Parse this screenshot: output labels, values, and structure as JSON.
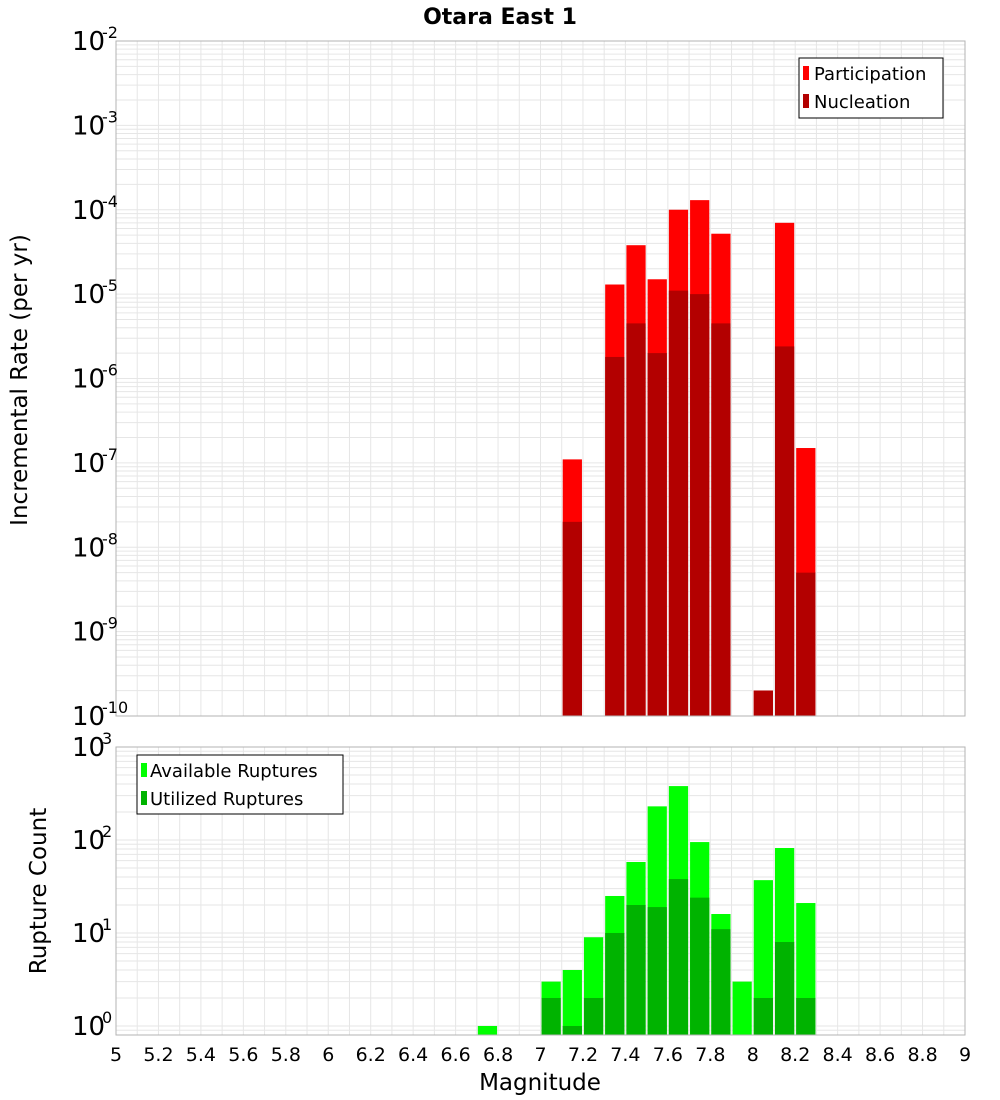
{
  "title": "Otara East 1",
  "chart_data": [
    {
      "type": "bar",
      "name": "rate-panel",
      "title": "Otara East 1",
      "xlabel": "Magnitude",
      "ylabel": "Incremental Rate (per yr)",
      "xlim": [
        5,
        9
      ],
      "ylim": [
        1e-10,
        0.01
      ],
      "y_scale": "log",
      "bar_width": 0.1,
      "grid": true,
      "legend_position": "top-right",
      "series": [
        {
          "name": "Participation",
          "color": "#ff0000",
          "points": [
            [
              7.15,
              1.1e-07
            ],
            [
              7.35,
              1.3e-05
            ],
            [
              7.45,
              3.8e-05
            ],
            [
              7.55,
              1.5e-05
            ],
            [
              7.65,
              0.0001
            ],
            [
              7.75,
              0.00013
            ],
            [
              7.85,
              5.2e-05
            ],
            [
              8.05,
              2e-10
            ],
            [
              8.15,
              7e-05
            ],
            [
              8.25,
              1.5e-07
            ]
          ]
        },
        {
          "name": "Nucleation",
          "color": "#b30000",
          "points": [
            [
              7.15,
              2e-08
            ],
            [
              7.35,
              1.8e-06
            ],
            [
              7.45,
              4.5e-06
            ],
            [
              7.55,
              2e-06
            ],
            [
              7.65,
              1.1e-05
            ],
            [
              7.75,
              1e-05
            ],
            [
              7.85,
              4.5e-06
            ],
            [
              8.05,
              2e-10
            ],
            [
              8.15,
              2.4e-06
            ],
            [
              8.25,
              5e-09
            ]
          ]
        }
      ]
    },
    {
      "type": "bar",
      "name": "count-panel",
      "xlabel": "Magnitude",
      "ylabel": "Rupture Count",
      "xlim": [
        5,
        9
      ],
      "ylim": [
        0.8,
        1000
      ],
      "y_scale": "log",
      "bar_width": 0.1,
      "grid": true,
      "legend_position": "top-left",
      "series": [
        {
          "name": "Available Ruptures",
          "color": "#00ff00",
          "points": [
            [
              6.75,
              1
            ],
            [
              7.05,
              3
            ],
            [
              7.15,
              4
            ],
            [
              7.25,
              9
            ],
            [
              7.35,
              25
            ],
            [
              7.45,
              58
            ],
            [
              7.55,
              230
            ],
            [
              7.65,
              380
            ],
            [
              7.75,
              95
            ],
            [
              7.85,
              16
            ],
            [
              7.95,
              3
            ],
            [
              8.05,
              37
            ],
            [
              8.15,
              82
            ],
            [
              8.25,
              21
            ]
          ]
        },
        {
          "name": "Utilized Ruptures",
          "color": "#00b300",
          "points": [
            [
              7.05,
              2
            ],
            [
              7.15,
              1
            ],
            [
              7.25,
              2
            ],
            [
              7.35,
              10
            ],
            [
              7.45,
              20
            ],
            [
              7.55,
              19
            ],
            [
              7.65,
              38
            ],
            [
              7.75,
              24
            ],
            [
              7.85,
              11
            ],
            [
              8.05,
              2
            ],
            [
              8.15,
              8
            ],
            [
              8.25,
              2
            ]
          ]
        }
      ]
    }
  ],
  "x_ticks": [
    5,
    5.2,
    5.4,
    5.6,
    5.8,
    6,
    6.2,
    6.4,
    6.6,
    6.8,
    7,
    7.2,
    7.4,
    7.6,
    7.8,
    8,
    8.2,
    8.4,
    8.6,
    8.8,
    9
  ],
  "x_tick_labels": [
    "5",
    "5.2",
    "5.4",
    "5.6",
    "5.8",
    "6",
    "6.2",
    "6.4",
    "6.6",
    "6.8",
    "7",
    "7.2",
    "7.4",
    "7.6",
    "7.8",
    "8",
    "8.2",
    "8.4",
    "8.6",
    "8.8",
    "9"
  ],
  "rate_y_exponents": [
    "-10",
    "-9",
    "-8",
    "-7",
    "-6",
    "-5",
    "-4",
    "-3",
    "-2"
  ],
  "count_y_exponents": [
    "0",
    "1",
    "2",
    "3"
  ],
  "y_tick_base": "10",
  "colors": {
    "grid": "#e6e6e6",
    "frame": "#b3b3b3",
    "bar_outline": "#ffffff"
  }
}
